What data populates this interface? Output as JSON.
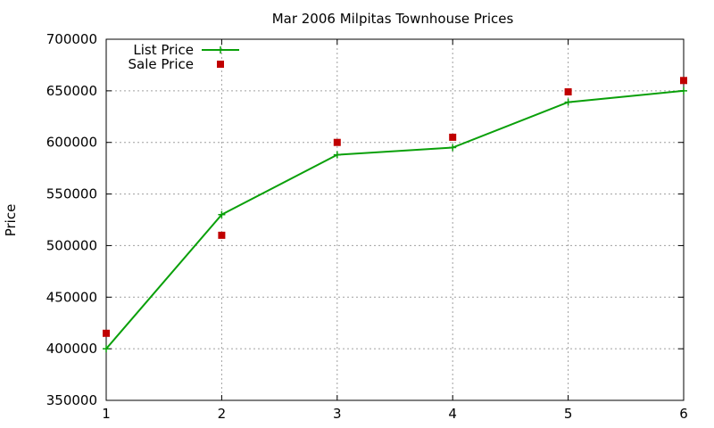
{
  "chart_data": {
    "type": "line",
    "title": "Mar 2006 Milpitas Townhouse Prices",
    "xlabel": "",
    "ylabel": "Price",
    "xlim": [
      1,
      6
    ],
    "ylim": [
      350000,
      700000
    ],
    "xticks": [
      1,
      2,
      3,
      4,
      5,
      6
    ],
    "yticks": [
      350000,
      400000,
      450000,
      500000,
      550000,
      600000,
      650000,
      700000
    ],
    "grid": true,
    "legend_position": "top-left",
    "series": [
      {
        "name": "List Price",
        "kind": "linespoints",
        "color": "#0aa00a",
        "x": [
          1,
          2,
          3,
          4,
          5,
          6
        ],
        "y": [
          400000,
          530000,
          588000,
          595000,
          639000,
          650000
        ]
      },
      {
        "name": "Sale Price",
        "kind": "points",
        "color": "#c00000",
        "x": [
          1,
          2,
          3,
          4,
          5,
          6
        ],
        "y": [
          415000,
          510000,
          600000,
          605000,
          649000,
          660000
        ]
      }
    ]
  }
}
